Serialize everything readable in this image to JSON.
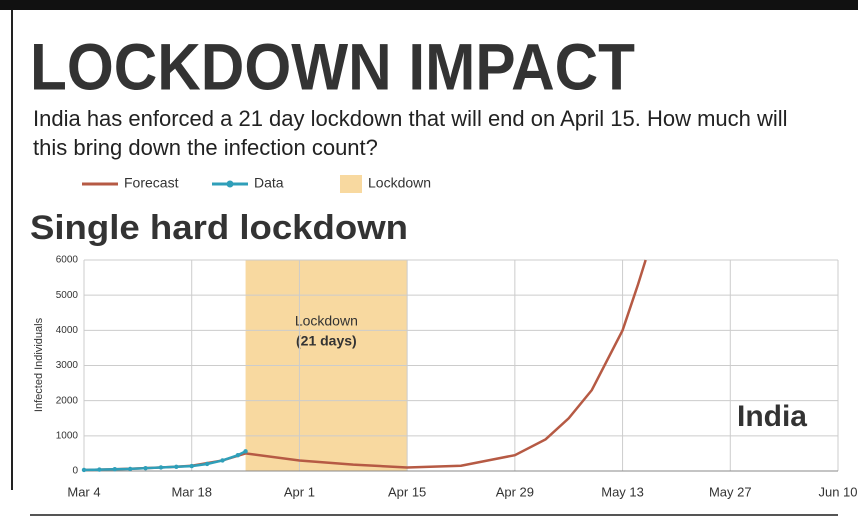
{
  "title": "LOCKDOWN IMPACT",
  "subtitle": "India has enforced a 21 day lockdown that will end on April 15. How much will this bring down the infection count?",
  "chart_data": {
    "type": "line",
    "title": "Single hard lockdown",
    "ylabel": "Infected Individuals",
    "annotation": "India",
    "xlim": [
      0,
      98
    ],
    "xticks": [
      {
        "value": 0,
        "label": "Mar 4"
      },
      {
        "value": 14,
        "label": "Mar 18"
      },
      {
        "value": 28,
        "label": "Apr 1"
      },
      {
        "value": 42,
        "label": "Apr 15"
      },
      {
        "value": 56,
        "label": "Apr 29"
      },
      {
        "value": 70,
        "label": "May 13"
      },
      {
        "value": 84,
        "label": "May 27"
      },
      {
        "value": 98,
        "label": "Jun 10"
      }
    ],
    "ylim": [
      0,
      6000
    ],
    "yticks": [
      0,
      1000,
      2000,
      3000,
      4000,
      5000,
      6000
    ],
    "grid": true,
    "lockdown": {
      "name": "Lockdown",
      "label": "Lockdown",
      "sublabel": "(21 days)",
      "color": "#f8d9a0",
      "x": [
        21,
        42
      ]
    },
    "series": [
      {
        "name": "Forecast",
        "color": "#b65a44",
        "x": [
          0,
          4,
          8,
          12,
          14,
          18,
          21,
          28,
          35,
          42,
          49,
          56,
          60,
          63,
          66,
          70,
          72,
          73
        ],
        "values": [
          30,
          50,
          80,
          120,
          150,
          300,
          500,
          300,
          180,
          100,
          150,
          450,
          900,
          1500,
          2300,
          4000,
          5300,
          6000
        ]
      },
      {
        "name": "Data",
        "color": "#2f9fb9",
        "x": [
          0,
          2,
          4,
          6,
          8,
          10,
          12,
          14,
          16,
          18,
          20,
          21
        ],
        "values": [
          30,
          40,
          50,
          60,
          80,
          100,
          120,
          140,
          200,
          300,
          450,
          560
        ]
      }
    ]
  }
}
